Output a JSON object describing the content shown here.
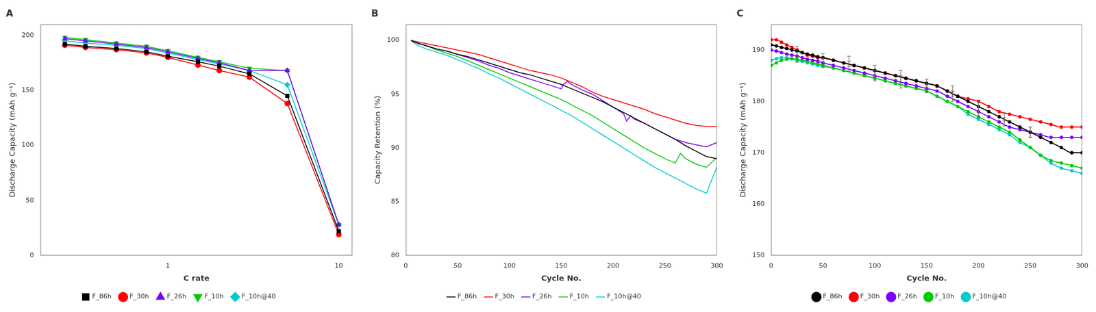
{
  "chart_data": [
    {
      "type": "line",
      "title": "A",
      "x_label": "C rate",
      "y_label": "Discharge Capacity (mAh g⁻¹)",
      "log": "x",
      "xlim": [
        0.18,
        12
      ],
      "xticks": [
        1,
        10
      ],
      "ylim": [
        0,
        210
      ],
      "yticks": [
        0,
        50,
        100,
        150,
        200
      ],
      "grid": false,
      "legend": "bottom",
      "series": [
        {
          "name": "F_86h",
          "color": "#000000",
          "marker": "square",
          "x": [
            0.25,
            0.33,
            0.5,
            0.75,
            1.0,
            1.5,
            2.0,
            3.0,
            5.0,
            10.0
          ],
          "values": [
            192,
            190,
            188,
            185,
            181,
            176,
            172,
            165,
            145,
            22
          ]
        },
        {
          "name": "F_30h",
          "color": "#ff0000",
          "marker": "circle",
          "x": [
            0.25,
            0.33,
            0.5,
            0.75,
            1.0,
            1.5,
            2.0,
            3.0,
            5.0,
            10.0
          ],
          "values": [
            191,
            189,
            187,
            184,
            180,
            173,
            168,
            162,
            138,
            19
          ]
        },
        {
          "name": "F_26h",
          "color": "#7b00ff",
          "marker": "triangle",
          "x": [
            0.25,
            0.33,
            0.5,
            0.75,
            1.0,
            1.5,
            2.0,
            3.0,
            5.0,
            10.0
          ],
          "values": [
            197,
            195,
            192,
            189,
            185,
            179,
            175,
            168,
            168,
            28
          ]
        },
        {
          "name": "F_10h",
          "color": "#00cc00",
          "marker": "triangle_down",
          "x": [
            0.25,
            0.33,
            0.5,
            0.75,
            1.0,
            1.5,
            2.0,
            3.0,
            5.0,
            10.0
          ],
          "values": [
            198,
            196,
            193,
            190,
            186,
            180,
            176,
            170,
            168,
            28
          ]
        },
        {
          "name": "F_10h@40",
          "color": "#00cccc",
          "marker": "diamond",
          "x": [
            0.25,
            0.33,
            0.5,
            0.75,
            1.0,
            1.5,
            2.0,
            3.0,
            5.0,
            10.0
          ],
          "values": [
            195,
            193,
            191,
            188,
            184,
            178,
            174,
            168,
            155,
            28
          ]
        }
      ]
    },
    {
      "type": "line",
      "title": "B",
      "x_label": "Cycle No.",
      "y_label": "Capacity Retention (%)",
      "xlim": [
        0,
        300
      ],
      "xticks": [
        0,
        50,
        100,
        150,
        200,
        250,
        300
      ],
      "ylim": [
        80,
        101.5
      ],
      "yticks": [
        80,
        85,
        90,
        95,
        100
      ],
      "grid": false,
      "legend": "bottom",
      "series": [
        {
          "name": "F_86h",
          "color": "#000000",
          "x": [
            5,
            10,
            20,
            30,
            40,
            50,
            60,
            70,
            80,
            90,
            100,
            110,
            120,
            130,
            140,
            150,
            160,
            170,
            180,
            190,
            200,
            210,
            220,
            230,
            240,
            250,
            260,
            270,
            280,
            290,
            300
          ],
          "values": [
            100.0,
            99.8,
            99.5,
            99.2,
            99.0,
            98.7,
            98.5,
            98.2,
            97.9,
            97.6,
            97.3,
            97.0,
            96.8,
            96.5,
            96.2,
            95.9,
            95.5,
            95.1,
            94.7,
            94.3,
            93.8,
            93.3,
            92.8,
            92.3,
            91.8,
            91.3,
            90.8,
            90.2,
            89.7,
            89.2,
            89.0
          ]
        },
        {
          "name": "F_30h",
          "color": "#ff0000",
          "x": [
            5,
            10,
            20,
            30,
            40,
            50,
            60,
            70,
            80,
            90,
            100,
            110,
            120,
            130,
            140,
            150,
            155,
            160,
            170,
            180,
            190,
            200,
            210,
            220,
            230,
            240,
            250,
            260,
            270,
            280,
            290,
            300
          ],
          "values": [
            100.0,
            99.9,
            99.7,
            99.5,
            99.3,
            99.1,
            98.9,
            98.7,
            98.4,
            98.1,
            97.8,
            97.5,
            97.2,
            97.0,
            96.8,
            96.5,
            96.3,
            96.1,
            95.7,
            95.2,
            94.8,
            94.5,
            94.2,
            93.9,
            93.6,
            93.2,
            92.9,
            92.6,
            92.3,
            92.1,
            92.0,
            92.0
          ]
        },
        {
          "name": "F_26h",
          "color": "#7b00ff",
          "x": [
            5,
            10,
            20,
            30,
            40,
            50,
            60,
            70,
            80,
            90,
            100,
            110,
            120,
            130,
            140,
            150,
            152,
            156,
            160,
            170,
            180,
            190,
            200,
            210,
            213,
            217,
            220,
            230,
            240,
            250,
            260,
            270,
            280,
            290,
            300
          ],
          "values": [
            100.0,
            99.8,
            99.5,
            99.2,
            99.0,
            98.7,
            98.4,
            98.1,
            97.7,
            97.4,
            97.0,
            96.7,
            96.4,
            96.1,
            95.8,
            95.5,
            95.9,
            96.2,
            95.9,
            95.4,
            95.0,
            94.4,
            93.8,
            93.2,
            92.5,
            93.0,
            92.7,
            92.3,
            91.8,
            91.3,
            90.8,
            90.5,
            90.3,
            90.1,
            90.5
          ]
        },
        {
          "name": "F_10h",
          "color": "#00cc00",
          "x": [
            5,
            10,
            20,
            30,
            40,
            50,
            60,
            70,
            80,
            90,
            100,
            110,
            120,
            130,
            140,
            150,
            160,
            170,
            180,
            190,
            200,
            210,
            220,
            230,
            240,
            250,
            260,
            265,
            270,
            280,
            290,
            300
          ],
          "values": [
            100.0,
            99.8,
            99.5,
            99.1,
            98.8,
            98.5,
            98.1,
            97.7,
            97.3,
            96.9,
            96.5,
            96.1,
            95.7,
            95.3,
            94.9,
            94.5,
            94.0,
            93.5,
            93.0,
            92.4,
            91.8,
            91.2,
            90.6,
            90.0,
            89.5,
            89.0,
            88.6,
            89.5,
            89.0,
            88.5,
            88.2,
            89.1
          ]
        },
        {
          "name": "F_10h@40",
          "color": "#00cccc",
          "x": [
            5,
            10,
            20,
            30,
            40,
            50,
            60,
            70,
            80,
            90,
            100,
            110,
            120,
            130,
            140,
            150,
            160,
            170,
            180,
            190,
            200,
            210,
            220,
            230,
            240,
            250,
            260,
            270,
            280,
            290,
            300
          ],
          "values": [
            100.0,
            99.6,
            99.2,
            98.9,
            98.6,
            98.2,
            97.8,
            97.4,
            96.9,
            96.5,
            96.0,
            95.5,
            95.0,
            94.5,
            94.0,
            93.5,
            93.0,
            92.4,
            91.8,
            91.2,
            90.6,
            90.0,
            89.4,
            88.8,
            88.2,
            87.7,
            87.2,
            86.7,
            86.2,
            85.8,
            88.2
          ]
        }
      ]
    },
    {
      "type": "line",
      "title": "C",
      "x_label": "Cycle No.",
      "y_label": "Discharge Capacity (mAh g⁻¹)",
      "xlim": [
        0,
        300
      ],
      "xticks": [
        0,
        50,
        100,
        150,
        200,
        250,
        300
      ],
      "ylim": [
        150,
        195
      ],
      "yticks": [
        150,
        160,
        170,
        180,
        190
      ],
      "grid": false,
      "legend": "bottom",
      "series": [
        {
          "name": "F_86h",
          "color": "#000000",
          "marker": "circle",
          "line_style": "smooth",
          "x": [
            0,
            5,
            10,
            15,
            20,
            25,
            30,
            35,
            40,
            45,
            50,
            60,
            70,
            80,
            90,
            100,
            110,
            120,
            130,
            140,
            150,
            160,
            170,
            180,
            190,
            200,
            210,
            220,
            230,
            240,
            250,
            260,
            270,
            280,
            290,
            300
          ],
          "values": [
            191,
            190.8,
            190.5,
            190.3,
            190.0,
            189.8,
            189.5,
            189.2,
            189.0,
            188.7,
            188.5,
            188.0,
            187.5,
            187.0,
            186.5,
            186.0,
            185.5,
            185.0,
            184.5,
            184.0,
            183.5,
            183.0,
            182.0,
            181.0,
            180.0,
            179.0,
            178.0,
            177.0,
            176.0,
            175.0,
            174.0,
            173.0,
            172.0,
            171.0,
            170.0,
            170.0
          ]
        },
        {
          "name": "F_30h",
          "color": "#ff0000",
          "marker": "circle",
          "line_style": "smooth",
          "x": [
            0,
            5,
            10,
            15,
            20,
            25,
            30,
            35,
            40,
            45,
            50,
            60,
            70,
            80,
            90,
            100,
            110,
            120,
            130,
            140,
            150,
            160,
            170,
            180,
            190,
            200,
            210,
            220,
            230,
            240,
            250,
            260,
            270,
            280,
            290,
            300
          ],
          "values": [
            192,
            192.0,
            191.5,
            191.0,
            190.5,
            190.0,
            189.5,
            189.0,
            188.8,
            188.5,
            188.5,
            188.0,
            187.5,
            187.0,
            186.5,
            186.0,
            185.5,
            185.0,
            184.5,
            184.0,
            183.5,
            183.0,
            182.0,
            181.0,
            180.5,
            180.0,
            179.0,
            178.0,
            177.5,
            177.0,
            176.5,
            176.0,
            175.5,
            175.0,
            175.0,
            175.0
          ]
        },
        {
          "name": "F_26h",
          "color": "#7b00ff",
          "marker": "circle",
          "line_style": "smooth",
          "x": [
            0,
            5,
            10,
            15,
            20,
            25,
            30,
            35,
            40,
            45,
            50,
            60,
            70,
            80,
            90,
            100,
            110,
            120,
            130,
            140,
            150,
            160,
            170,
            180,
            190,
            200,
            210,
            220,
            230,
            240,
            250,
            260,
            270,
            280,
            290,
            300
          ],
          "values": [
            190,
            189.8,
            189.5,
            189.2,
            189.0,
            188.8,
            188.5,
            188.2,
            188.0,
            187.8,
            187.5,
            187.0,
            186.5,
            186.0,
            185.5,
            185.0,
            184.5,
            184.0,
            183.5,
            183.0,
            182.5,
            182.0,
            181.0,
            180.0,
            179.0,
            178.0,
            177.0,
            176.0,
            175.0,
            174.5,
            174.0,
            173.5,
            173.0,
            173.0,
            173.0,
            173.0
          ]
        },
        {
          "name": "F_10h",
          "color": "#00cc00",
          "marker": "circle",
          "line_style": "smooth",
          "x": [
            0,
            5,
            10,
            15,
            20,
            25,
            30,
            35,
            40,
            45,
            50,
            60,
            70,
            80,
            90,
            100,
            110,
            120,
            130,
            140,
            150,
            160,
            170,
            180,
            190,
            200,
            210,
            220,
            230,
            240,
            250,
            260,
            270,
            280,
            290,
            300
          ],
          "values": [
            187,
            187.5,
            188.0,
            188.2,
            188.3,
            188.2,
            188.0,
            187.8,
            187.5,
            187.3,
            187.0,
            186.5,
            186.0,
            185.5,
            185.0,
            184.5,
            184.0,
            183.5,
            183.0,
            182.5,
            182.0,
            181.0,
            180.0,
            179.0,
            178.0,
            177.0,
            176.0,
            175.0,
            174.0,
            172.5,
            171.0,
            169.5,
            168.5,
            168.0,
            167.5,
            167.0
          ]
        },
        {
          "name": "F_10h@40",
          "color": "#00cccc",
          "marker": "circle",
          "line_style": "smooth",
          "x": [
            0,
            5,
            10,
            15,
            20,
            25,
            30,
            35,
            40,
            45,
            50,
            60,
            70,
            80,
            90,
            100,
            110,
            120,
            130,
            140,
            150,
            160,
            170,
            180,
            190,
            200,
            210,
            220,
            230,
            240,
            250,
            260,
            270,
            280,
            290,
            300
          ],
          "values": [
            188,
            188.3,
            188.5,
            188.5,
            188.3,
            188.0,
            187.8,
            187.5,
            187.3,
            187.0,
            186.8,
            186.5,
            186.0,
            185.5,
            185.0,
            184.5,
            184.0,
            183.5,
            183.0,
            182.5,
            182.0,
            181.0,
            180.0,
            179.0,
            177.5,
            176.5,
            175.5,
            174.5,
            173.5,
            172.0,
            171.0,
            169.5,
            168.0,
            167.0,
            166.5,
            166.0
          ]
        }
      ],
      "error_bars": [
        {
          "color": "#666666",
          "x": [
            25,
            50,
            75,
            100,
            125,
            150,
            175,
            200,
            225,
            250
          ],
          "y": [
            189.7,
            188.5,
            187.8,
            186.0,
            184.8,
            183.5,
            182.0,
            179.0,
            177.0,
            174.0
          ],
          "yerr": [
            1.0,
            0.8,
            1.0,
            1.0,
            1.2,
            0.8,
            1.0,
            1.2,
            0.8,
            1.0
          ]
        },
        {
          "color": "#666666",
          "x": [
            25,
            50,
            75,
            100,
            125,
            150,
            175,
            200,
            225,
            250
          ],
          "y": [
            188.6,
            187.5,
            186.8,
            185.0,
            183.8,
            182.5,
            181.0,
            178.0,
            176.0,
            174.0
          ],
          "yerr": [
            1.0,
            0.8,
            1.0,
            1.0,
            1.2,
            0.8,
            1.0,
            1.2,
            0.8,
            1.0
          ]
        }
      ]
    }
  ]
}
